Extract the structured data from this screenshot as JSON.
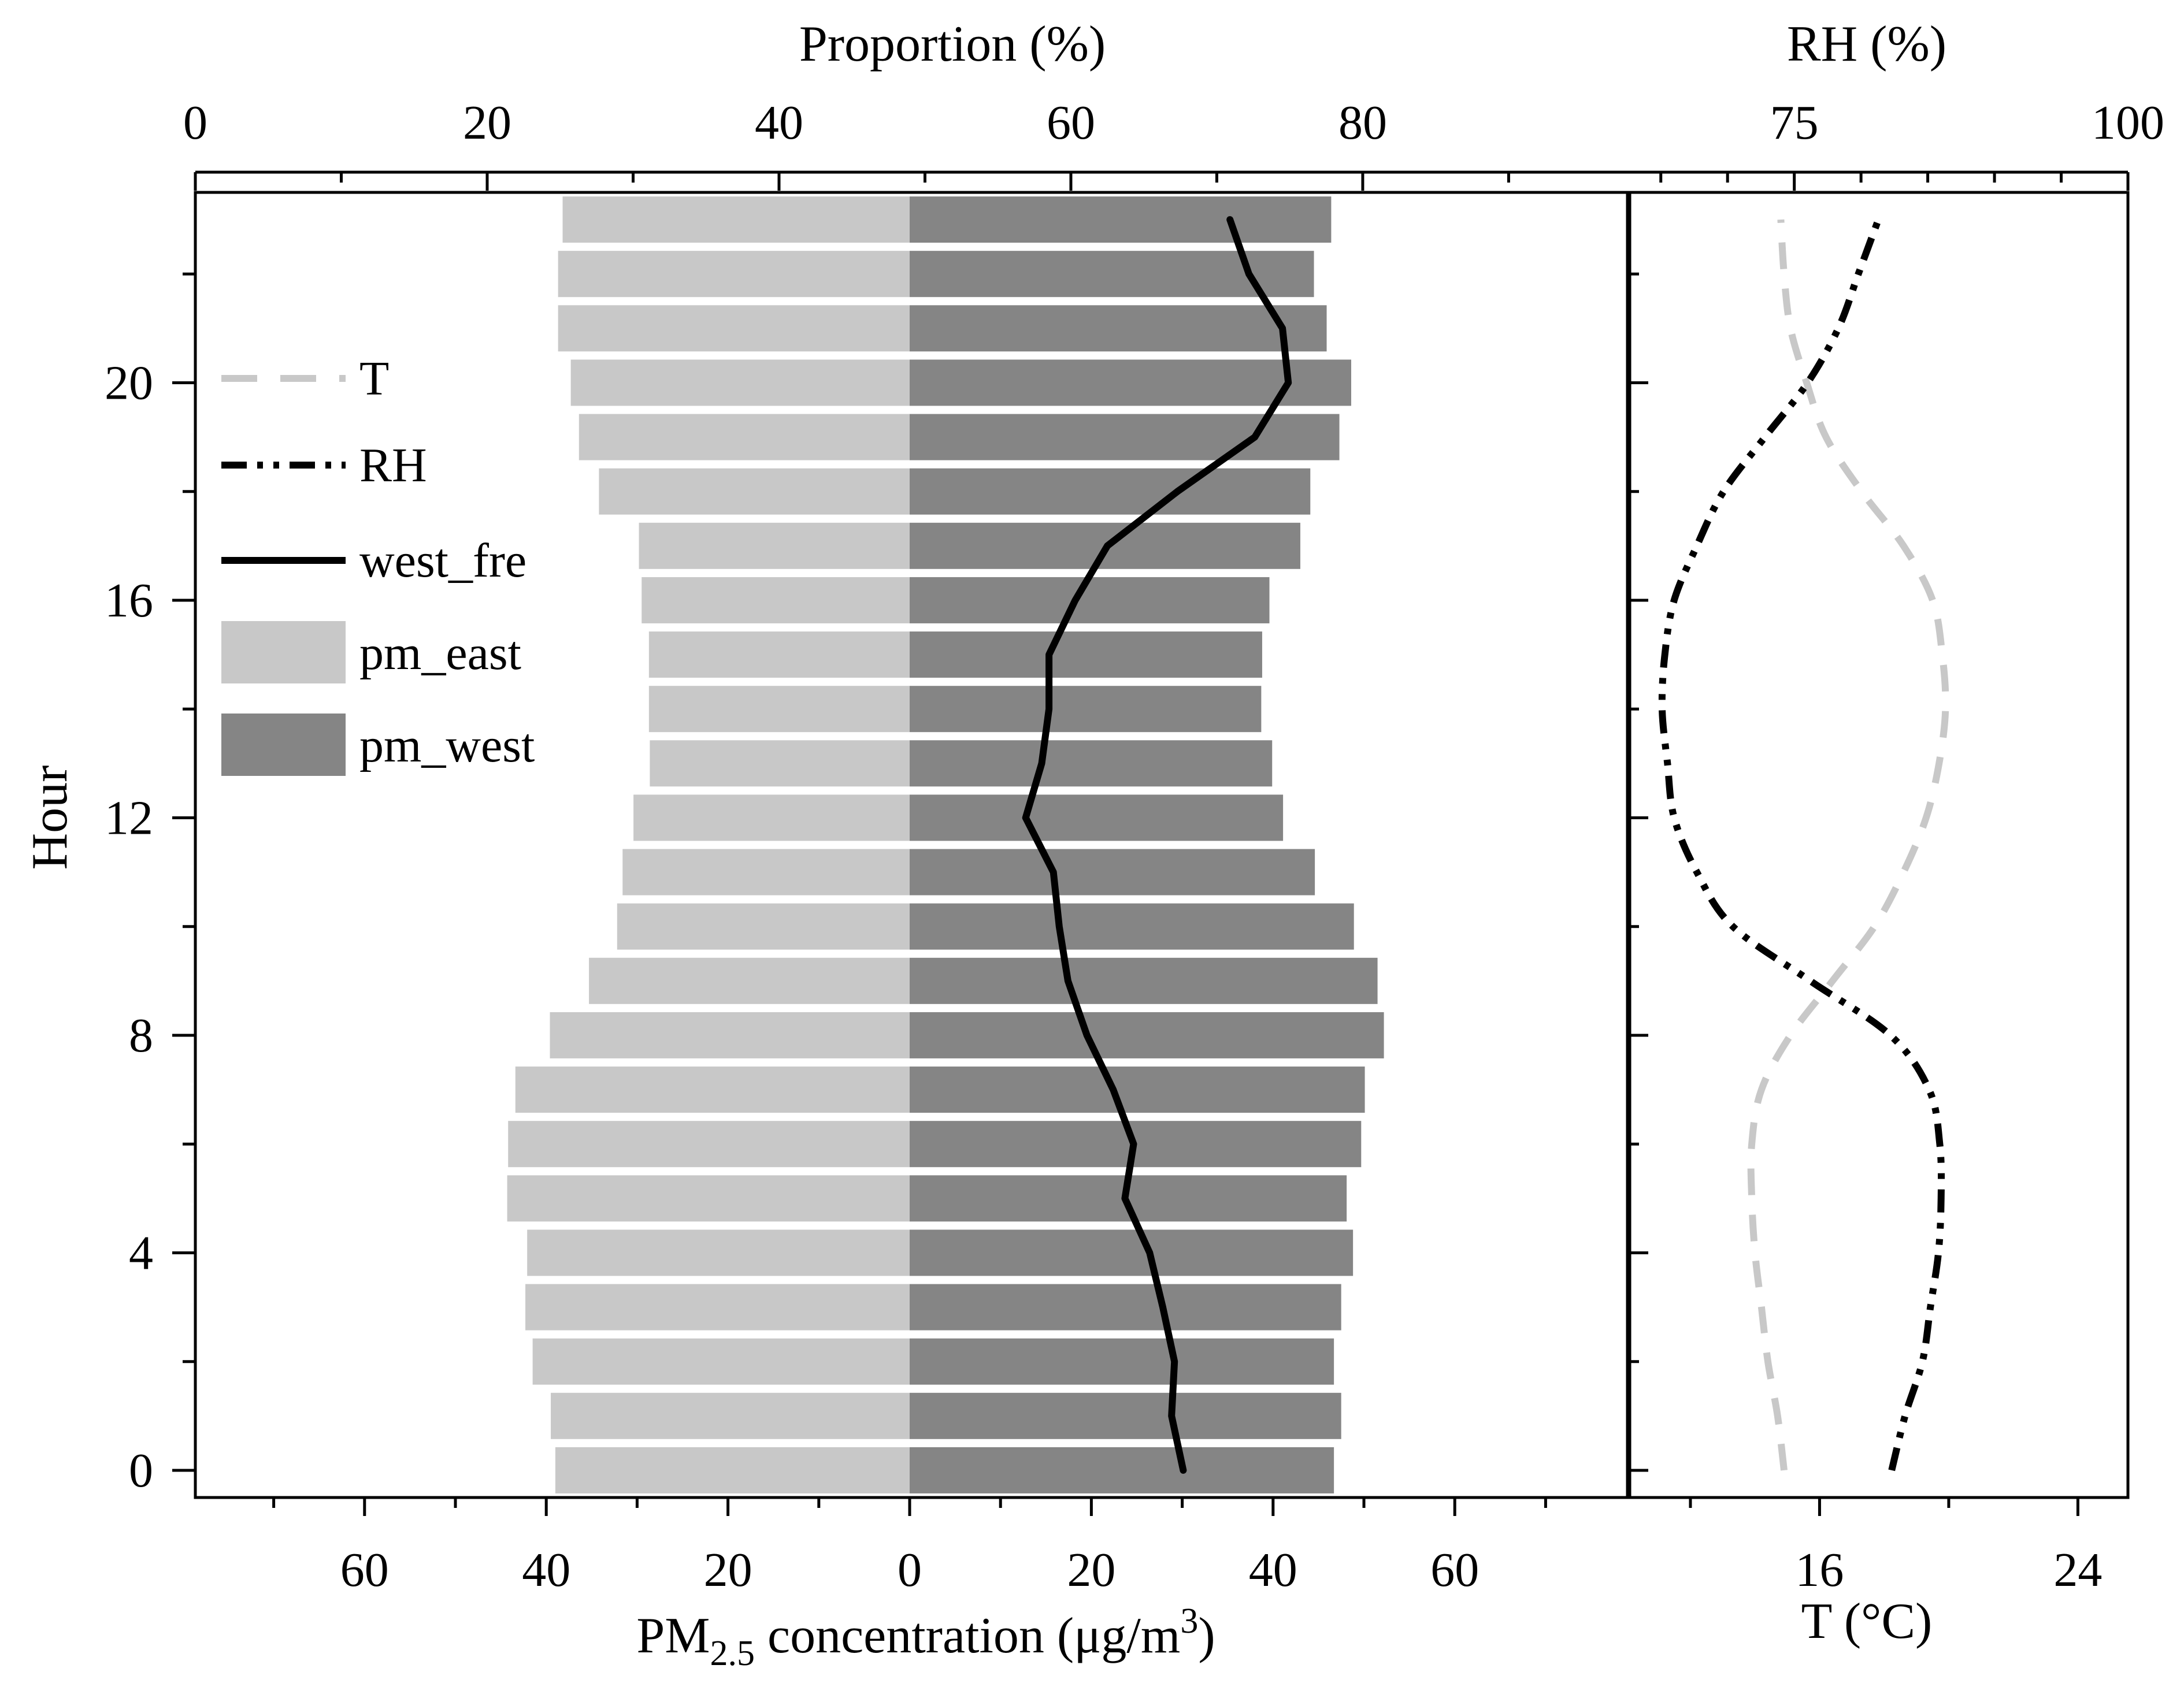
{
  "chart_data": [
    {
      "type": "bar",
      "orientation": "horizontal",
      "layout": "back-to-back",
      "hours": [
        0,
        1,
        2,
        3,
        4,
        5,
        6,
        7,
        8,
        9,
        10,
        11,
        12,
        13,
        14,
        15,
        16,
        17,
        18,
        19,
        20,
        21,
        22,
        23
      ],
      "series": [
        {
          "name": "pm_east",
          "color": "#c8c8c8",
          "side": "left",
          "values": [
            39,
            39.5,
            41.5,
            42.3,
            42.1,
            44.3,
            44.2,
            43.4,
            39.6,
            35.3,
            32.2,
            31.6,
            30.4,
            28.6,
            28.7,
            28.7,
            29.5,
            29.8,
            34.2,
            36.4,
            37.3,
            38.7,
            38.7,
            38.2
          ]
        },
        {
          "name": "pm_west",
          "color": "#858585",
          "side": "right",
          "values": [
            46.7,
            47.5,
            46.7,
            47.5,
            48.8,
            48.1,
            49.7,
            50.1,
            52.2,
            51.5,
            48.9,
            44.6,
            41.1,
            39.9,
            38.7,
            38.8,
            39.6,
            43.0,
            44.1,
            47.3,
            48.6,
            45.9,
            44.5,
            46.4
          ]
        }
      ],
      "line": {
        "name": "west_fre",
        "axis": "Proportion (%)",
        "color": "#000000",
        "values": [
          67.7,
          66.9,
          67.1,
          66.3,
          65.4,
          63.7,
          64.3,
          62.9,
          61.1,
          59.8,
          59.2,
          58.8,
          56.9,
          58.0,
          58.5,
          58.5,
          60.3,
          62.5,
          67.3,
          72.6,
          74.9,
          74.5,
          72.2,
          70.9
        ]
      },
      "xlabel_bottom": "PM2.5 concentration (μg/m3)",
      "xlabel_bottom_parts": {
        "main": "PM",
        "sub": "2.5",
        "rest": " concentration (μg/m",
        "sup": "3",
        "close": ")"
      },
      "xticks_bottom": [
        "60",
        "40",
        "20",
        "0",
        "20",
        "40",
        "60"
      ],
      "xlabel_top": "Proportion (%)",
      "xticks_top": [
        "0",
        "20",
        "40",
        "60",
        "80"
      ],
      "top_range": [
        0,
        98.3
      ],
      "bottom_range": [
        -78.7,
        78.7
      ],
      "ylabel": "Hour",
      "yticks": [
        "0",
        "4",
        "8",
        "12",
        "16",
        "20"
      ],
      "ylim": [
        -0.5,
        23.5
      ],
      "legend": {
        "position": "upper-left",
        "items": [
          {
            "label": "T",
            "kind": "line-dashed",
            "color": "#c8c8c8"
          },
          {
            "label": "RH",
            "kind": "line-dashdot",
            "color": "#000000"
          },
          {
            "label": "west_fre",
            "kind": "line-solid",
            "color": "#000000"
          },
          {
            "label": "pm_east",
            "kind": "patch",
            "color": "#c8c8c8"
          },
          {
            "label": "pm_west",
            "kind": "patch",
            "color": "#858585"
          }
        ]
      }
    },
    {
      "type": "line",
      "series": [
        {
          "name": "T",
          "axis": "T (°C)",
          "style": "dashed",
          "color": "#c8c8c8",
          "values": [
            14.9,
            14.7,
            14.4,
            14.2,
            14.0,
            13.9,
            13.9,
            14.2,
            15.1,
            16.4,
            17.7,
            18.6,
            19.3,
            19.7,
            19.9,
            19.8,
            19.5,
            18.6,
            17.3,
            16.2,
            15.6,
            15.1,
            14.9,
            14.8
          ]
        },
        {
          "name": "RH",
          "axis": "RH (%)",
          "style": "dashdot",
          "color": "#000000",
          "values": [
            82.3,
            83.3,
            84.6,
            85.2,
            85.8,
            86.0,
            85.9,
            85.1,
            82.2,
            76.2,
            70.4,
            67.7,
            66.0,
            65.5,
            65.1,
            65.3,
            66.0,
            67.7,
            69.7,
            72.8,
            76.0,
            78.3,
            79.8,
            81.3
          ]
        }
      ],
      "xlabel_top": "RH (%)",
      "xticks_top": [
        "75",
        "100"
      ],
      "rh_range": [
        62.5,
        100
      ],
      "xlabel_bottom": "T (°C)",
      "xticks_bottom": [
        "16",
        "24"
      ],
      "t_range": [
        10.05,
        25.55
      ],
      "ylim": [
        -0.5,
        23.5
      ]
    }
  ]
}
